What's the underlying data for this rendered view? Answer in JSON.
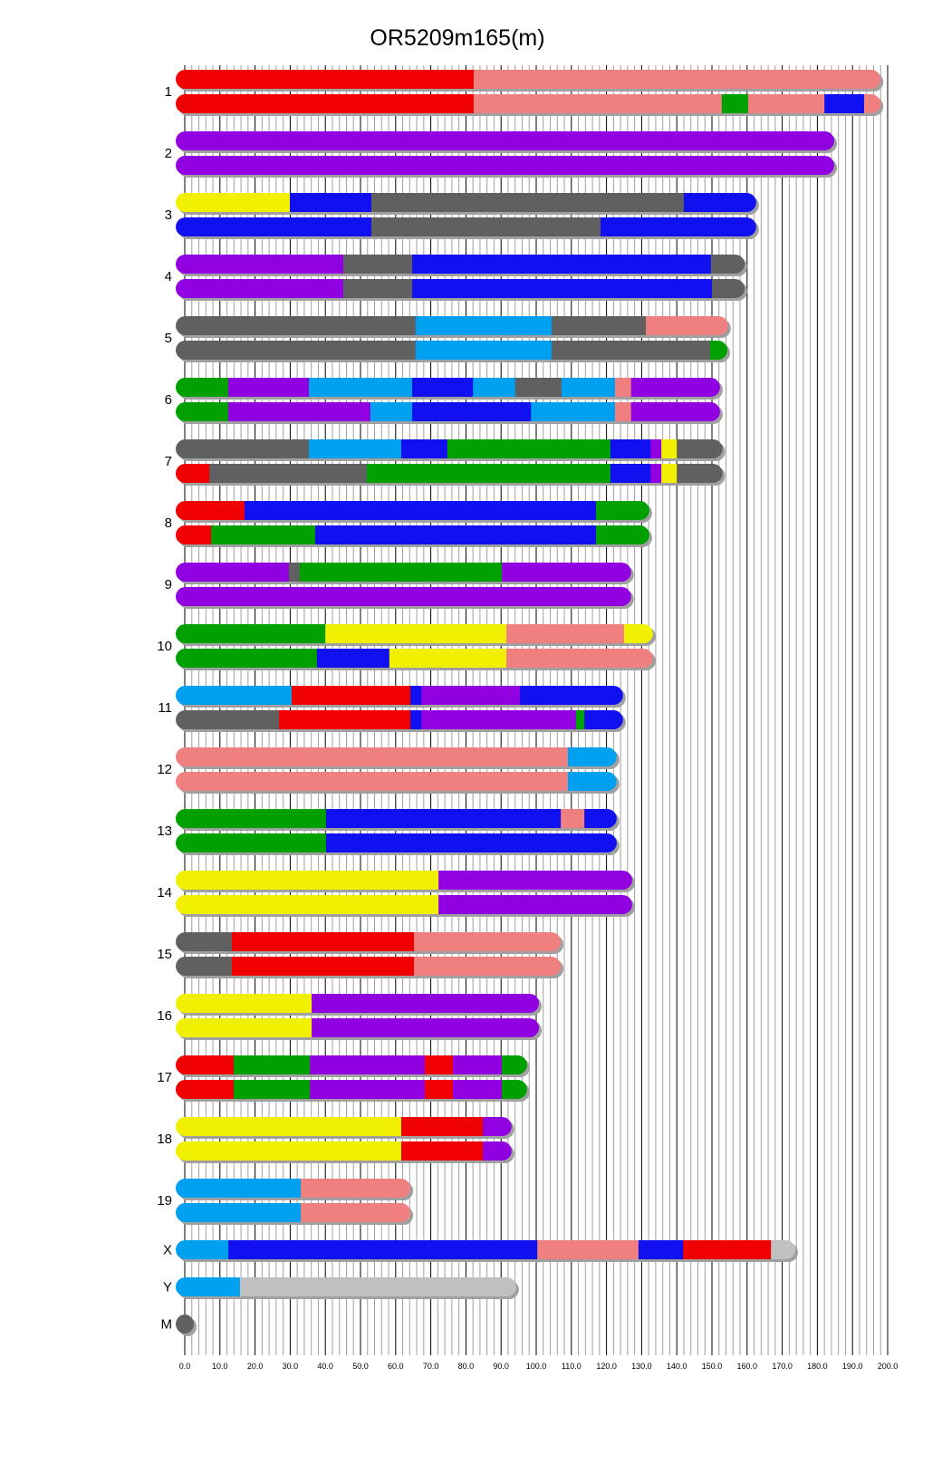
{
  "title": "OR5209m165(m)",
  "colors": {
    "R": "#f00000",
    "P": "#f08080",
    "G": "#00a000",
    "B": "#1010f0",
    "V": "#9000e0",
    "C": "#00a0f0",
    "D": "#606060",
    "Y": "#f0f000",
    "L": "#c0c0c0",
    "shadow": "#a0a0a0"
  },
  "axis": {
    "min": 0,
    "max": 200,
    "major_step": 10,
    "minor_step": 2,
    "tick_labels": [
      "0.0",
      "10.0",
      "20.0",
      "30.0",
      "40.0",
      "50.0",
      "60.0",
      "70.0",
      "80.0",
      "90.0",
      "100.0",
      "110.0",
      "120.0",
      "130.0",
      "140.0",
      "150.0",
      "160.0",
      "170.0",
      "180.0",
      "190.0",
      "200.0"
    ]
  },
  "chromosomes": [
    {
      "name": "1",
      "haplotypes": [
        [
          [
            "R",
            82.2
          ],
          [
            "P",
            198
          ]
        ],
        [
          [
            "R",
            82.2
          ],
          [
            "P",
            152.8
          ],
          [
            "G",
            160.3
          ],
          [
            "P",
            182
          ],
          [
            "B",
            193.3
          ],
          [
            "P",
            198
          ]
        ]
      ]
    },
    {
      "name": "2",
      "haplotypes": [
        [
          [
            "V",
            184.8
          ]
        ],
        [
          [
            "V",
            184.8
          ]
        ]
      ]
    },
    {
      "name": "3",
      "haplotypes": [
        [
          [
            "Y",
            29.9
          ],
          [
            "B",
            53.1
          ],
          [
            "D",
            142
          ],
          [
            "B",
            162.6
          ]
        ],
        [
          [
            "B",
            53.1
          ],
          [
            "D",
            118.3
          ],
          [
            "B",
            162.6
          ]
        ]
      ]
    },
    {
      "name": "4",
      "haplotypes": [
        [
          [
            "V",
            45.1
          ],
          [
            "D",
            64.7
          ],
          [
            "B",
            149.7
          ],
          [
            "D",
            159.3
          ]
        ],
        [
          [
            "V",
            45.1
          ],
          [
            "D",
            64.7
          ],
          [
            "B",
            150
          ],
          [
            "D",
            159.3
          ]
        ]
      ]
    },
    {
      "name": "5",
      "haplotypes": [
        [
          [
            "D",
            65.7
          ],
          [
            "C",
            104.4
          ],
          [
            "D",
            131.2
          ],
          [
            "P",
            154.6
          ]
        ],
        [
          [
            "D",
            65.7
          ],
          [
            "C",
            104.4
          ],
          [
            "D",
            149.5
          ],
          [
            "G",
            154.4
          ]
        ]
      ]
    },
    {
      "name": "6",
      "haplotypes": [
        [
          [
            "G",
            12.4
          ],
          [
            "V",
            35.3
          ],
          [
            "C",
            64.7
          ],
          [
            "B",
            82
          ],
          [
            "C",
            94
          ],
          [
            "D",
            107.2
          ],
          [
            "C",
            122.4
          ],
          [
            "P",
            127
          ],
          [
            "V",
            152.3
          ]
        ],
        [
          [
            "G",
            12.4
          ],
          [
            "V",
            52.8
          ],
          [
            "C",
            64.7
          ],
          [
            "B",
            98.5
          ],
          [
            "C",
            122.4
          ],
          [
            "P",
            127
          ],
          [
            "V",
            152.3
          ]
        ]
      ]
    },
    {
      "name": "7",
      "haplotypes": [
        [
          [
            "D",
            35.3
          ],
          [
            "C",
            61.6
          ],
          [
            "B",
            74.7
          ],
          [
            "G",
            121.1
          ],
          [
            "B",
            132.5
          ],
          [
            "V",
            135.6
          ],
          [
            "Y",
            140
          ],
          [
            "D",
            153
          ]
        ],
        [
          [
            "R",
            7
          ],
          [
            "D",
            51.8
          ],
          [
            "G",
            121.1
          ],
          [
            "B",
            132.5
          ],
          [
            "V",
            135.6
          ],
          [
            "Y",
            140
          ],
          [
            "D",
            153
          ]
        ]
      ]
    },
    {
      "name": "8",
      "haplotypes": [
        [
          [
            "R",
            17
          ],
          [
            "B",
            117
          ],
          [
            "G",
            132.2
          ]
        ],
        [
          [
            "R",
            7.5
          ],
          [
            "G",
            37.1
          ],
          [
            "B",
            117
          ],
          [
            "G",
            132.2
          ]
        ]
      ]
    },
    {
      "name": "9",
      "haplotypes": [
        [
          [
            "V",
            29.6
          ],
          [
            "D",
            32.7
          ],
          [
            "G",
            90.2
          ],
          [
            "V",
            127
          ]
        ],
        [
          [
            "V",
            127
          ]
        ]
      ]
    },
    {
      "name": "10",
      "haplotypes": [
        [
          [
            "G",
            40
          ],
          [
            "Y",
            91.5
          ],
          [
            "P",
            125
          ],
          [
            "Y",
            133.2
          ]
        ],
        [
          [
            "G",
            37.6
          ],
          [
            "B",
            58.2
          ],
          [
            "Y",
            91.5
          ],
          [
            "P",
            133.2
          ]
        ]
      ]
    },
    {
      "name": "11",
      "haplotypes": [
        [
          [
            "C",
            30.4
          ],
          [
            "R",
            64.2
          ],
          [
            "B",
            67.3
          ],
          [
            "V",
            95.4
          ],
          [
            "B",
            124.7
          ]
        ],
        [
          [
            "D",
            26.8
          ],
          [
            "R",
            64.2
          ],
          [
            "B",
            67.3
          ],
          [
            "V",
            111.3
          ],
          [
            "G",
            113.7
          ],
          [
            "B",
            124.7
          ]
        ]
      ]
    },
    {
      "name": "12",
      "haplotypes": [
        [
          [
            "P",
            109
          ],
          [
            "C",
            122.9
          ]
        ],
        [
          [
            "P",
            109
          ],
          [
            "C",
            122.9
          ]
        ]
      ]
    },
    {
      "name": "13",
      "haplotypes": [
        [
          [
            "G",
            40.2
          ],
          [
            "B",
            107
          ],
          [
            "P",
            113.7
          ],
          [
            "B",
            122.9
          ]
        ],
        [
          [
            "G",
            40.2
          ],
          [
            "B",
            122.9
          ]
        ]
      ]
    },
    {
      "name": "14",
      "haplotypes": [
        [
          [
            "Y",
            72.2
          ],
          [
            "V",
            127.3
          ]
        ],
        [
          [
            "Y",
            72.2
          ],
          [
            "V",
            127.3
          ]
        ]
      ]
    },
    {
      "name": "15",
      "haplotypes": [
        [
          [
            "D",
            13.4
          ],
          [
            "R",
            65.2
          ],
          [
            "P",
            107
          ]
        ],
        [
          [
            "D",
            13.4
          ],
          [
            "R",
            65.2
          ],
          [
            "P",
            107
          ]
        ]
      ]
    },
    {
      "name": "16",
      "haplotypes": [
        [
          [
            "Y",
            36.1
          ],
          [
            "V",
            100.8
          ]
        ],
        [
          [
            "Y",
            36.1
          ],
          [
            "V",
            100.8
          ]
        ]
      ]
    },
    {
      "name": "17",
      "haplotypes": [
        [
          [
            "R",
            13.9
          ],
          [
            "G",
            35.6
          ],
          [
            "V",
            68.3
          ],
          [
            "R",
            76.3
          ],
          [
            "V",
            90.2
          ],
          [
            "G",
            97.4
          ]
        ],
        [
          [
            "R",
            13.9
          ],
          [
            "G",
            35.6
          ],
          [
            "V",
            68.3
          ],
          [
            "R",
            76.3
          ],
          [
            "V",
            90.2
          ],
          [
            "G",
            97.4
          ]
        ]
      ]
    },
    {
      "name": "18",
      "haplotypes": [
        [
          [
            "Y",
            61.6
          ],
          [
            "R",
            84.8
          ],
          [
            "V",
            93
          ]
        ],
        [
          [
            "Y",
            61.6
          ],
          [
            "R",
            84.8
          ],
          [
            "V",
            93
          ]
        ]
      ]
    },
    {
      "name": "19",
      "haplotypes": [
        [
          [
            "C",
            33
          ],
          [
            "P",
            64.2
          ]
        ],
        [
          [
            "C",
            33
          ],
          [
            "P",
            64.2
          ]
        ]
      ]
    },
    {
      "name": "X",
      "haplotypes": [
        [
          [
            "C",
            12.4
          ],
          [
            "B",
            100.3
          ],
          [
            "P",
            129.1
          ],
          [
            "B",
            141.8
          ],
          [
            "R",
            166.8
          ],
          [
            "L",
            173.7
          ]
        ]
      ]
    },
    {
      "name": "Y",
      "haplotypes": [
        [
          [
            "C",
            15.7
          ],
          [
            "L",
            94.3
          ]
        ]
      ]
    },
    {
      "name": "M",
      "haplotypes": [
        [
          [
            "D",
            0.02
          ]
        ]
      ]
    }
  ]
}
